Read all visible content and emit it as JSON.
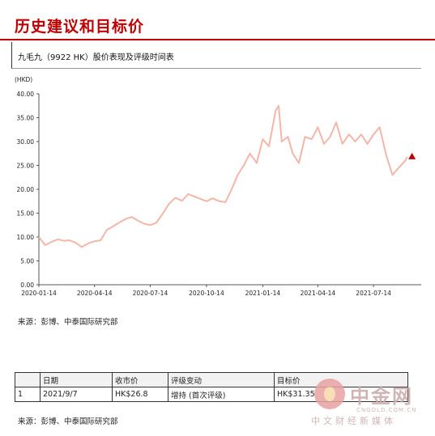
{
  "header": {
    "title": "历史建议和目标价",
    "subtitle": "九毛九（9922 HK）股价表现及评级时间表"
  },
  "chart_data": {
    "type": "line",
    "unit_label": "(HKD)",
    "ylim": [
      0,
      40
    ],
    "y_ticks": [
      "0.00",
      "5.00",
      "10.00",
      "15.00",
      "20.00",
      "25.00",
      "30.00",
      "35.00",
      "40.00"
    ],
    "x_tick_labels": [
      "2020-01-14",
      "2020-04-14",
      "2020-07-14",
      "2020-10-14",
      "2021-01-14",
      "2021-04-14",
      "2021-07-14"
    ],
    "series": [
      {
        "x": [
          "2020-01-14",
          "2020-01-24",
          "2020-02-04",
          "2020-02-14",
          "2020-02-24",
          "2020-03-04",
          "2020-03-14",
          "2020-03-24",
          "2020-04-04",
          "2020-04-14",
          "2020-04-24",
          "2020-05-04",
          "2020-05-14",
          "2020-05-24",
          "2020-06-04",
          "2020-06-14",
          "2020-06-24",
          "2020-07-04",
          "2020-07-14",
          "2020-07-24",
          "2020-08-04",
          "2020-08-14",
          "2020-08-24",
          "2020-09-04",
          "2020-09-14",
          "2020-09-24",
          "2020-10-04",
          "2020-10-14",
          "2020-10-24",
          "2020-11-04",
          "2020-11-14",
          "2020-11-24",
          "2020-12-04",
          "2020-12-14",
          "2020-12-24",
          "2021-01-04",
          "2021-01-14",
          "2021-01-24",
          "2021-02-04",
          "2021-02-09",
          "2021-02-14",
          "2021-02-24",
          "2021-03-04",
          "2021-03-14",
          "2021-03-24",
          "2021-04-04",
          "2021-04-14",
          "2021-04-24",
          "2021-05-04",
          "2021-05-14",
          "2021-05-24",
          "2021-06-04",
          "2021-06-14",
          "2021-06-24",
          "2021-07-04",
          "2021-07-14",
          "2021-07-24",
          "2021-08-04",
          "2021-08-14",
          "2021-08-24",
          "2021-09-04",
          "2021-09-07"
        ],
        "y": [
          10.0,
          8.3,
          9.0,
          9.5,
          9.2,
          9.3,
          8.8,
          7.9,
          8.7,
          9.1,
          9.3,
          11.5,
          12.2,
          13.0,
          13.8,
          14.2,
          13.4,
          12.8,
          12.5,
          13.0,
          15.0,
          17.0,
          18.2,
          17.6,
          19.0,
          18.5,
          18.0,
          17.5,
          18.1,
          17.5,
          17.3,
          20.0,
          23.0,
          25.0,
          27.5,
          25.5,
          30.5,
          29.0,
          36.5,
          37.5,
          30.0,
          31.0,
          27.5,
          25.5,
          31.0,
          30.5,
          33.0,
          29.5,
          31.0,
          34.0,
          29.5,
          31.5,
          30.0,
          31.5,
          29.5,
          31.5,
          33.0,
          27.0,
          23.0,
          24.5,
          26.0,
          26.8
        ]
      }
    ],
    "marker": {
      "x": "2021-09-07",
      "y": 26.8,
      "color": "#c00000"
    },
    "line_color": "#f4b6a8"
  },
  "sources": {
    "chart_source": "来源：彭博、中泰国际研究部",
    "table_source": "来源：彭博、中泰国际研究部"
  },
  "rating_table": {
    "headers": [
      "",
      "日期",
      "收市价",
      "评级变动",
      "目标价"
    ],
    "rows": [
      [
        "1",
        "2021/9/7",
        "HK$26.8",
        "增持 (首次评级)",
        "HK$31.35"
      ]
    ]
  },
  "watermark": {
    "brand": "中金网",
    "domain": "CNGOLD.COM.CN",
    "slogan": "中文财经新媒体"
  }
}
